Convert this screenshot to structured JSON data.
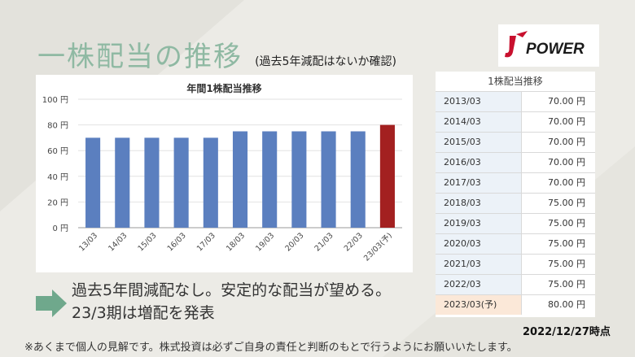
{
  "title": "一株配当の推移",
  "subtitle": "(過去5年減配はないか確認)",
  "logo_text": "POWER",
  "colors": {
    "bar": "#5b7fbf",
    "bar_highlight": "#a32020",
    "title_green": "#8fb9a3",
    "arrow": "#6fa88c"
  },
  "chart_data": {
    "type": "bar",
    "title": "年間1株配当推移",
    "categories": [
      "13/03",
      "14/03",
      "15/03",
      "16/03",
      "17/03",
      "18/03",
      "19/03",
      "20/03",
      "21/03",
      "22/03",
      "23/03(予)"
    ],
    "values": [
      70,
      70,
      70,
      70,
      70,
      75,
      75,
      75,
      75,
      75,
      80
    ],
    "highlight_index": 10,
    "ylim": [
      0,
      100
    ],
    "yticks": [
      "0 円",
      "20 円",
      "40 円",
      "60 円",
      "80 円",
      "100 円"
    ],
    "grid": true,
    "xlabel": "",
    "ylabel": ""
  },
  "table": {
    "title": "1株配当推移",
    "rows": [
      {
        "year": "2013/03",
        "value": "70.00 円"
      },
      {
        "year": "2014/03",
        "value": "70.00 円"
      },
      {
        "year": "2015/03",
        "value": "70.00 円"
      },
      {
        "year": "2016/03",
        "value": "70.00 円"
      },
      {
        "year": "2017/03",
        "value": "70.00 円"
      },
      {
        "year": "2018/03",
        "value": "75.00 円"
      },
      {
        "year": "2019/03",
        "value": "75.00 円"
      },
      {
        "year": "2020/03",
        "value": "75.00 円"
      },
      {
        "year": "2021/03",
        "value": "75.00 円"
      },
      {
        "year": "2022/03",
        "value": "75.00 円"
      },
      {
        "year": "2023/03(予)",
        "value": "80.00 円"
      }
    ]
  },
  "notes": [
    "過去5年間減配なし。安定的な配当が望める。",
    "23/3期は増配を発表"
  ],
  "date": "2022/12/27時点",
  "disclaimer": "※あくまで個人の見解です。株式投資は必ずご自身の責任と判断のもとで行うようにお願いいたします。"
}
